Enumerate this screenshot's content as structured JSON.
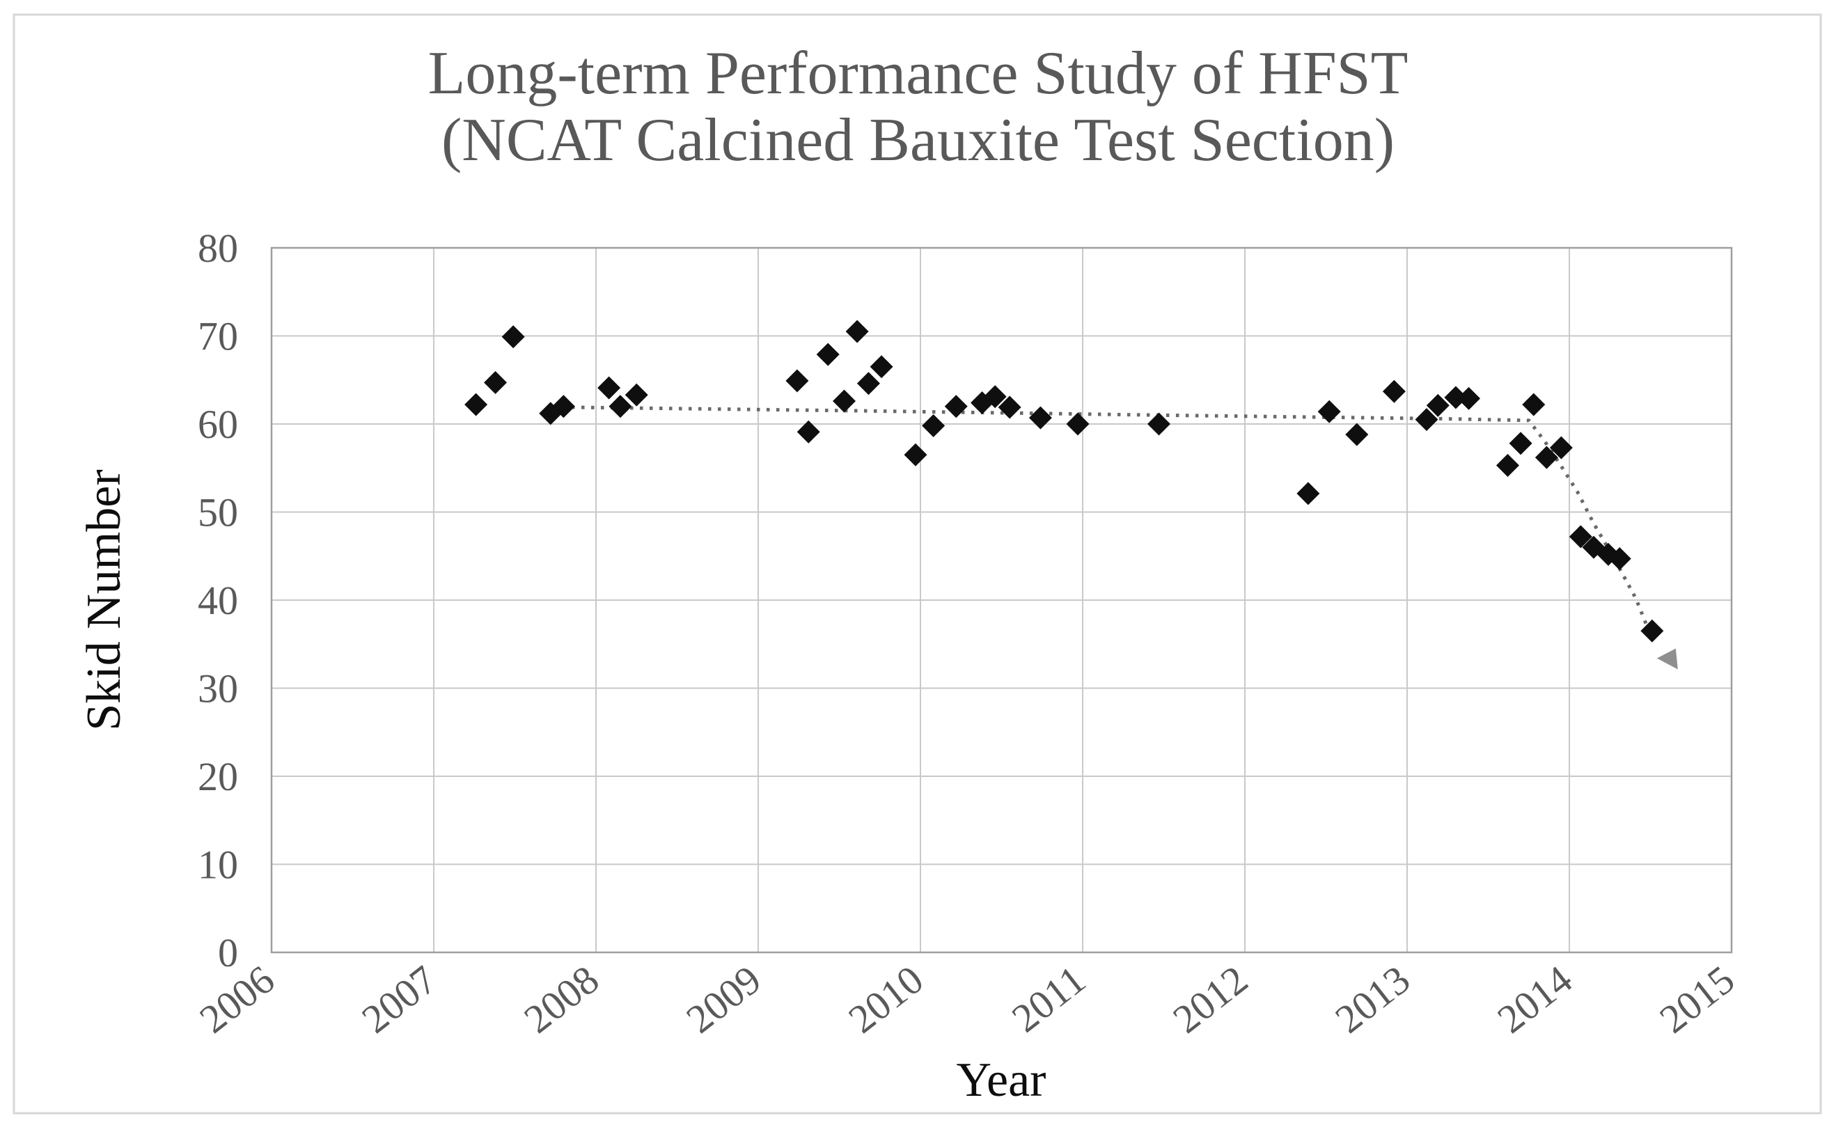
{
  "figure": {
    "title_line1": "Long-term Performance Study of HFST",
    "title_line2": "(NCAT Calcined Bauxite Test Section)"
  },
  "chart_data": {
    "type": "scatter",
    "title": "Long-term Performance Study of HFST (NCAT Calcined Bauxite Test Section)",
    "xlabel": "Year",
    "ylabel": "Skid Number",
    "xlim": [
      2006,
      2015
    ],
    "ylim": [
      0,
      80
    ],
    "x_ticks": [
      2006,
      2007,
      2008,
      2009,
      2010,
      2011,
      2012,
      2013,
      2014,
      2015
    ],
    "y_ticks": [
      0,
      10,
      20,
      30,
      40,
      50,
      60,
      70,
      80
    ],
    "grid": true,
    "legend": "none",
    "series": [
      {
        "marker": "diamond",
        "points": [
          [
            2007.26,
            62.2
          ],
          [
            2007.38,
            64.7
          ],
          [
            2007.49,
            69.9
          ],
          [
            2007.72,
            61.2
          ],
          [
            2007.8,
            62.0
          ],
          [
            2008.08,
            64.1
          ],
          [
            2008.15,
            62.0
          ],
          [
            2008.25,
            63.3
          ],
          [
            2009.24,
            64.9
          ],
          [
            2009.31,
            59.1
          ],
          [
            2009.43,
            67.9
          ],
          [
            2009.53,
            62.6
          ],
          [
            2009.61,
            70.5
          ],
          [
            2009.68,
            64.6
          ],
          [
            2009.76,
            66.5
          ],
          [
            2009.97,
            56.5
          ],
          [
            2010.08,
            59.8
          ],
          [
            2010.22,
            62.0
          ],
          [
            2010.38,
            62.4
          ],
          [
            2010.46,
            63.1
          ],
          [
            2010.55,
            61.9
          ],
          [
            2010.74,
            60.7
          ],
          [
            2010.97,
            60.0
          ],
          [
            2011.47,
            60.0
          ],
          [
            2012.39,
            52.1
          ],
          [
            2012.52,
            61.4
          ],
          [
            2012.69,
            58.8
          ],
          [
            2012.92,
            63.7
          ],
          [
            2013.12,
            60.5
          ],
          [
            2013.19,
            62.1
          ],
          [
            2013.3,
            63.0
          ],
          [
            2013.38,
            62.9
          ],
          [
            2013.62,
            55.3
          ],
          [
            2013.7,
            57.8
          ],
          [
            2013.78,
            62.2
          ],
          [
            2013.86,
            56.2
          ],
          [
            2013.95,
            57.3
          ],
          [
            2014.07,
            47.2
          ],
          [
            2014.15,
            46.0
          ],
          [
            2014.24,
            45.2
          ],
          [
            2014.31,
            44.7
          ],
          [
            2014.51,
            36.5
          ]
        ]
      }
    ],
    "trendline": {
      "style": "dotted",
      "arrow_end": true,
      "points": [
        [
          2007.85,
          61.9
        ],
        [
          2009.6,
          61.5
        ],
        [
          2011.5,
          61.0
        ],
        [
          2013.2,
          60.6
        ],
        [
          2013.75,
          60.4
        ],
        [
          2013.85,
          58.0
        ],
        [
          2013.95,
          55.2
        ],
        [
          2014.05,
          52.3
        ],
        [
          2014.15,
          48.7
        ],
        [
          2014.28,
          44.6
        ],
        [
          2014.41,
          40.2
        ],
        [
          2014.51,
          35.6
        ]
      ],
      "arrow_tip": [
        2014.54,
        33.4
      ]
    }
  },
  "style": {
    "title_color": "#595959",
    "tick_color": "#595959",
    "axis_title_color": "#0d0d0d",
    "gridline_color": "#c9c9c9",
    "plot_border_color": "#9e9e9e",
    "marker_color": "#0f0f0f",
    "trend_color": "#696969",
    "arrow_color": "#8f8f8f",
    "figure_border_color": "#d7d7d7"
  }
}
